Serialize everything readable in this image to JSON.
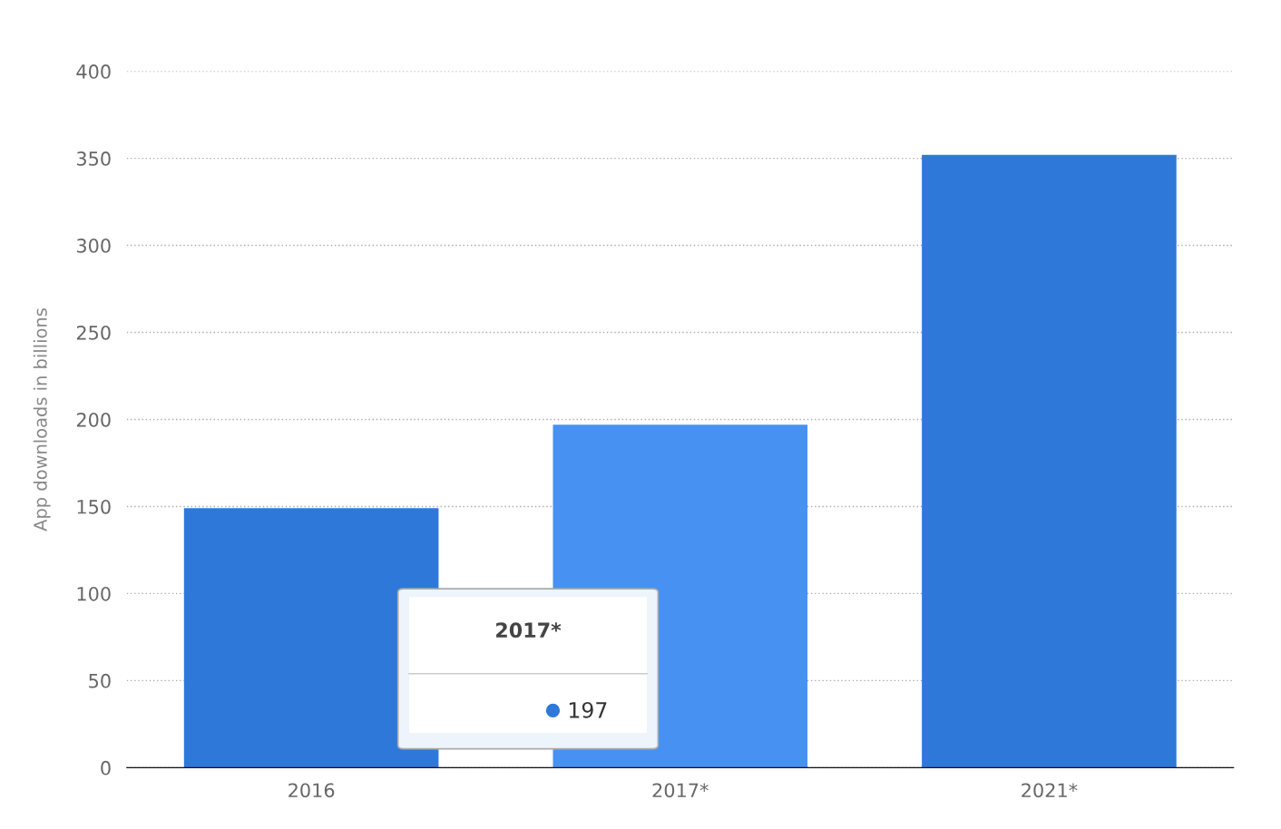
{
  "chart_data": {
    "type": "bar",
    "ylabel": "App downloads in billions",
    "categories": [
      "2016",
      "2017*",
      "2021*"
    ],
    "values": [
      149,
      197,
      352
    ],
    "colors": [
      "#2e78d9",
      "#4791f3",
      "#2e78d9"
    ],
    "value_labels": [
      null,
      "197",
      null
    ],
    "annotations": [
      "2017*"
    ],
    "ylim": [
      0,
      400
    ],
    "yticks": [
      0,
      50,
      100,
      150,
      200,
      250,
      300,
      350,
      400
    ],
    "grid": "y"
  }
}
